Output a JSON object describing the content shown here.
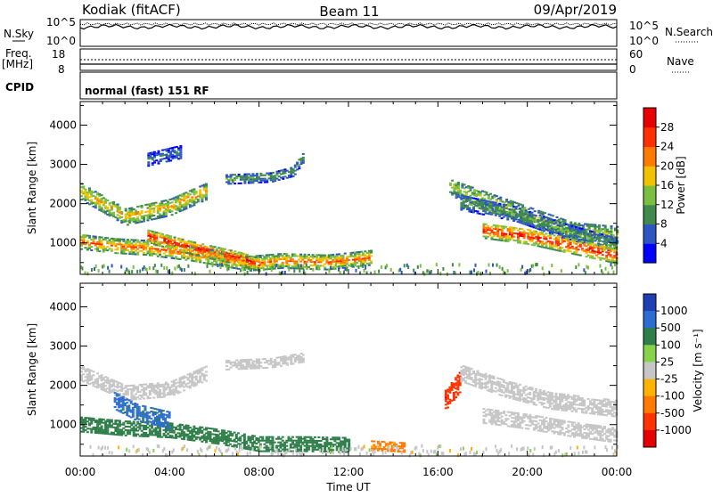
{
  "header": {
    "site": "Kodiak (fitACF)",
    "beam": "Beam 11",
    "date": "09/Apr/2019"
  },
  "strips": {
    "nsky": {
      "label": "N.Sky",
      "left_top": "10^5",
      "left_bottom": "10^0",
      "right_label": "N.Search",
      "right_top": "10^5",
      "right_bottom": "10^0"
    },
    "freq": {
      "label_line1": "Freq.",
      "label_line2": "[MHz]",
      "left_top": "18",
      "left_bottom": "8",
      "right_label": "Nave",
      "right_top": "60",
      "right_bottom": "0"
    },
    "cpid": {
      "label": "CPID",
      "text": "normal (fast) 151 RF"
    }
  },
  "chart_data": [
    {
      "type": "heatmap",
      "name": "power",
      "ylabel": "Slant Range [km]",
      "yticks": [
        "1000",
        "2000",
        "3000",
        "4000"
      ],
      "ylim": [
        200,
        4600
      ],
      "xlim": [
        0,
        24
      ],
      "colorbar": {
        "label": "Power [dB]",
        "ticks": [
          "4",
          "8",
          "12",
          "16",
          "20",
          "24",
          "28"
        ],
        "colors": [
          "#0000ff",
          "#2e56c2",
          "#3f8a4c",
          "#7abf3f",
          "#f2c200",
          "#ff7a00",
          "#ff3000",
          "#e80000"
        ]
      },
      "bands": [
        {
          "x": [
            0.0,
            2.0,
            4.0,
            5.6
          ],
          "y": [
            2300,
            1650,
            1900,
            2300
          ],
          "w": 220,
          "v": 20
        },
        {
          "x": [
            0.0,
            1.5,
            3.0,
            5.0,
            7.5,
            9.0,
            11.0,
            13.0
          ],
          "y": [
            1000,
            900,
            850,
            700,
            450,
            520,
            480,
            600
          ],
          "w": 180,
          "v": 24
        },
        {
          "x": [
            3.0,
            5.0,
            7.0,
            8.0
          ],
          "y": [
            1150,
            850,
            600,
            430
          ],
          "w": 170,
          "v": 28
        },
        {
          "x": [
            6.5,
            8.5,
            9.5,
            10.0
          ],
          "y": [
            2600,
            2650,
            2800,
            3200
          ],
          "w": 120,
          "v": 12
        },
        {
          "x": [
            16.5,
            18.0,
            20.0,
            22.0,
            24.0
          ],
          "y": [
            2400,
            2100,
            1700,
            1300,
            1200
          ],
          "w": 220,
          "v": 16
        },
        {
          "x": [
            17.0,
            19.5,
            21.5,
            24.0
          ],
          "y": [
            2000,
            1700,
            1300,
            900
          ],
          "w": 180,
          "v": 12
        },
        {
          "x": [
            18.0,
            20.0,
            22.0,
            24.0
          ],
          "y": [
            1300,
            1150,
            900,
            650
          ],
          "w": 200,
          "v": 28
        },
        {
          "x": [
            3.0,
            4.5
          ],
          "y": [
            3100,
            3300
          ],
          "w": 160,
          "v": 8
        }
      ]
    },
    {
      "type": "heatmap",
      "name": "velocity",
      "ylabel": "Slant Range [km]",
      "xlabel": "Time UT",
      "xticks": [
        "00:00",
        "04:00",
        "08:00",
        "12:00",
        "16:00",
        "20:00",
        "00:00"
      ],
      "yticks": [
        "1000",
        "2000",
        "3000",
        "4000"
      ],
      "ylim": [
        200,
        4600
      ],
      "xlim": [
        0,
        24
      ],
      "colorbar": {
        "label": "Velocity [m s⁻¹]",
        "ticks": [
          "1000",
          "500",
          "100",
          "25",
          "-25",
          "-100",
          "-500",
          "-1000"
        ],
        "colors": [
          "#1e3fb4",
          "#2b6dd0",
          "#2e7e49",
          "#86d34b",
          "#c6c6c6",
          "#ffb300",
          "#ff7a00",
          "#ff3300",
          "#e60000"
        ]
      },
      "bands": [
        {
          "x": [
            0.0,
            2.0,
            4.0,
            5.6
          ],
          "y": [
            2300,
            1800,
            1900,
            2300
          ],
          "w": 200,
          "v": 0
        },
        {
          "x": [
            0.0,
            2.0,
            4.0,
            6.0,
            8.0,
            10.0,
            12.0
          ],
          "y": [
            1000,
            900,
            850,
            700,
            500,
            500,
            480
          ],
          "w": 200,
          "v": 150
        },
        {
          "x": [
            1.5,
            2.5,
            4.0
          ],
          "y": [
            1600,
            1300,
            1100
          ],
          "w": 220,
          "v": 400
        },
        {
          "x": [
            6.5,
            8.5,
            10.0
          ],
          "y": [
            2500,
            2550,
            2700
          ],
          "w": 120,
          "v": 0
        },
        {
          "x": [
            13.0,
            14.5
          ],
          "y": [
            450,
            400
          ],
          "w": 120,
          "v": -80
        },
        {
          "x": [
            16.3,
            17.0
          ],
          "y": [
            1600,
            2100
          ],
          "w": 250,
          "v": -600
        },
        {
          "x": [
            17.0,
            19.0,
            21.0,
            24.0
          ],
          "y": [
            2300,
            1900,
            1600,
            1400
          ],
          "w": 220,
          "v": 0
        },
        {
          "x": [
            18.0,
            20.0,
            22.0,
            24.0
          ],
          "y": [
            1200,
            1050,
            850,
            700
          ],
          "w": 180,
          "v": 0
        }
      ]
    }
  ]
}
